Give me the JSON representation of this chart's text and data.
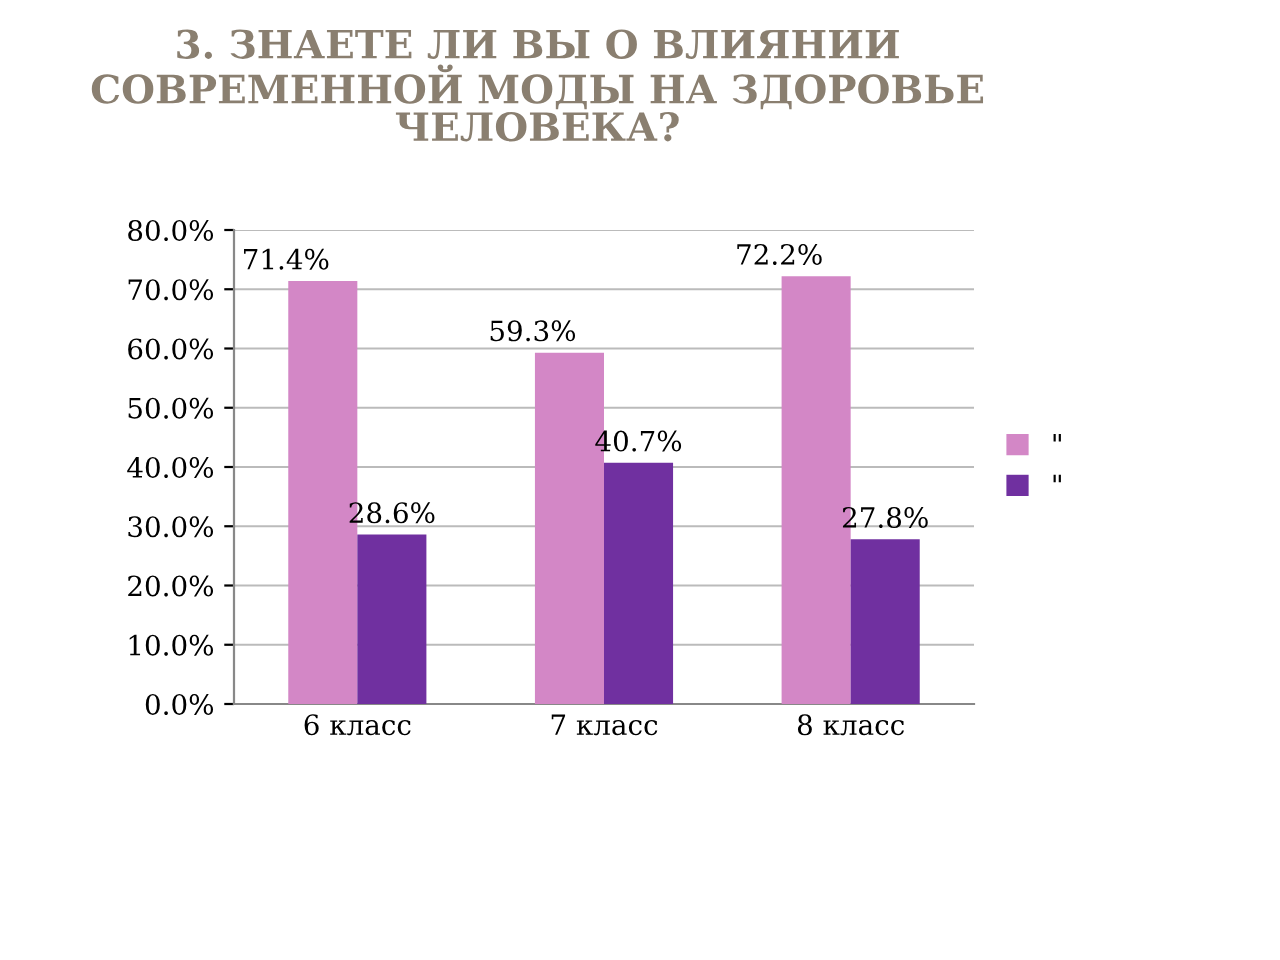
{
  "chart_data": {
    "type": "bar",
    "title": "3. ЗНАЕТЕ ЛИ ВЫ О ВЛИЯНИИ СОВРЕМЕННОЙ МОДЫ НА ЗДОРОВЬЕ ЧЕЛОВЕКА?",
    "categories": [
      "6 класс",
      "7 класс",
      "8 класс"
    ],
    "series": [
      {
        "name": "\"",
        "color": "#d387c6",
        "values": [
          71.4,
          59.3,
          72.2
        ],
        "value_labels": [
          "71.4%",
          "59.3%",
          "72.2%"
        ]
      },
      {
        "name": "\"",
        "color": "#7030a0",
        "values": [
          28.6,
          40.7,
          27.8
        ],
        "value_labels": [
          "28.6%",
          "40.7%",
          "27.8%"
        ]
      }
    ],
    "ylim": [
      0,
      80
    ],
    "yticks": [
      {
        "value": 0,
        "label": "0.0%"
      },
      {
        "value": 10,
        "label": "10.0%"
      },
      {
        "value": 20,
        "label": "20.0%"
      },
      {
        "value": 30,
        "label": "30.0%"
      },
      {
        "value": 40,
        "label": "40.0%"
      },
      {
        "value": 50,
        "label": "50.0%"
      },
      {
        "value": 60,
        "label": "60.0%"
      },
      {
        "value": 70,
        "label": "70.0%"
      },
      {
        "value": 80,
        "label": "80.0%"
      }
    ],
    "grid": "y",
    "legend": "right"
  }
}
